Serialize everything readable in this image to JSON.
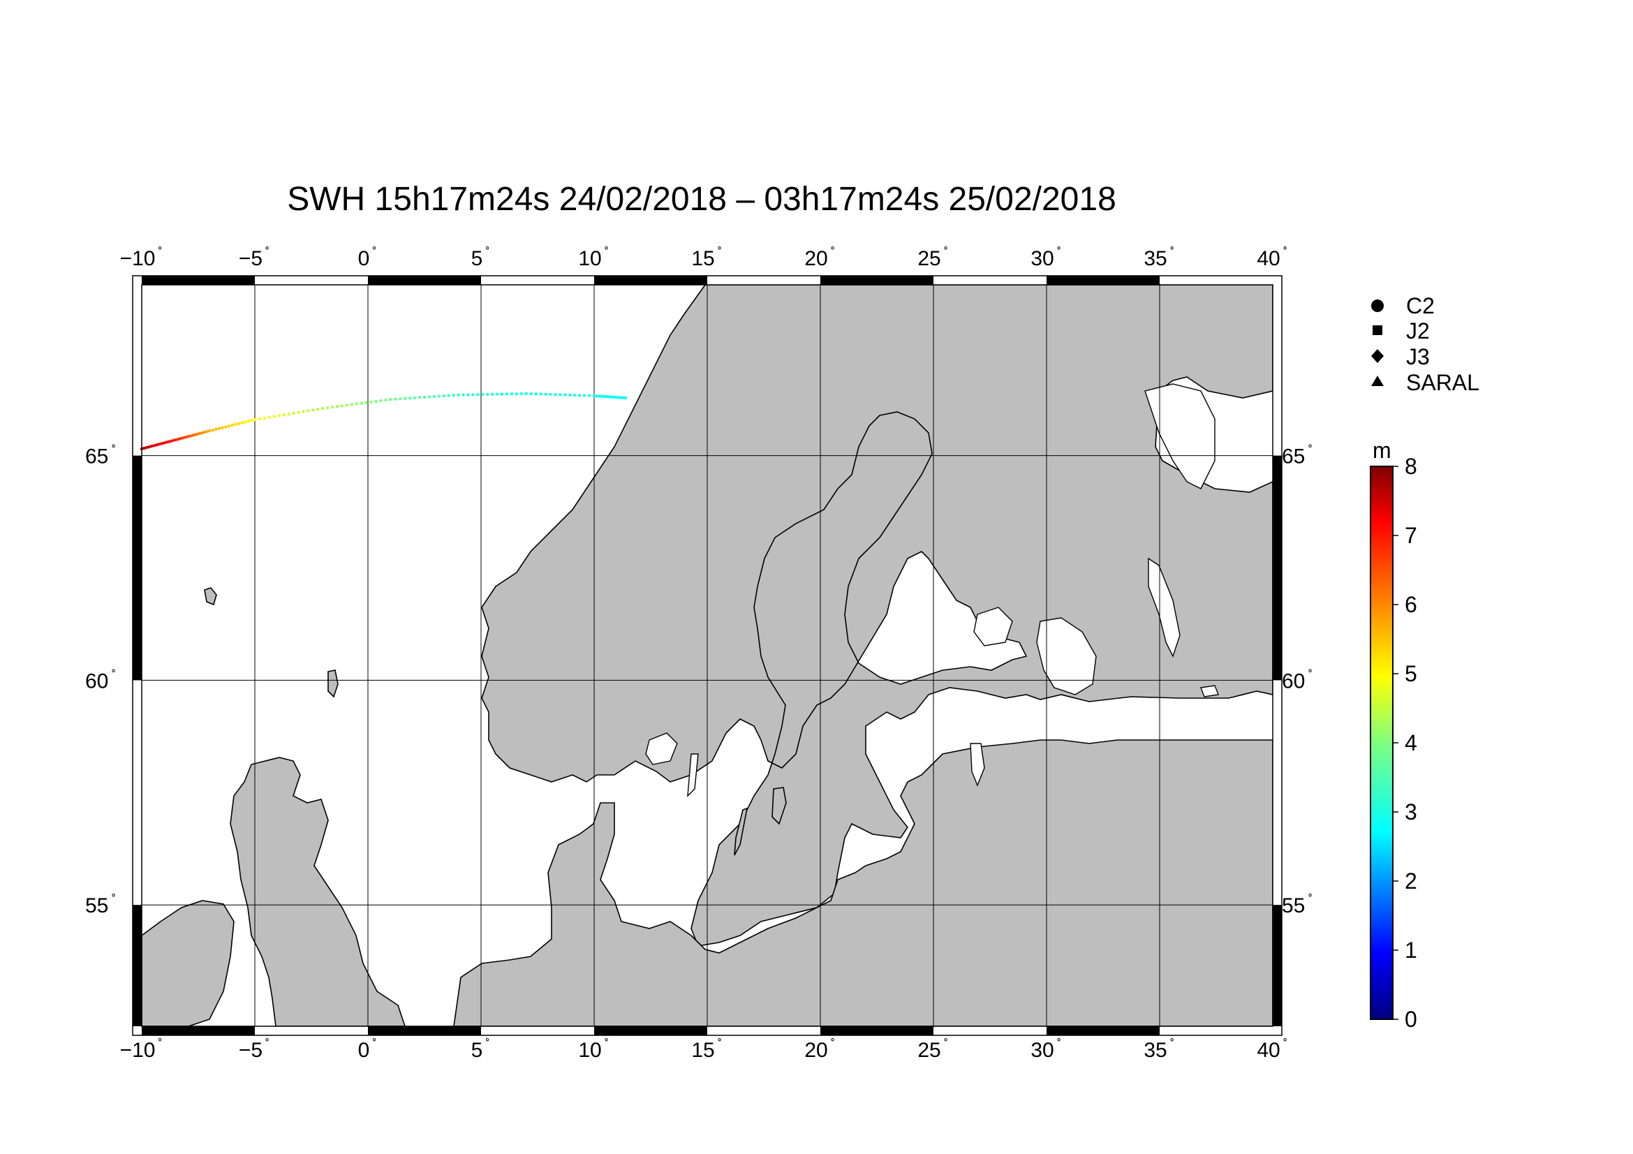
{
  "title": "SWH 15h17m24s 24/02/2018 – 03h17m24s 25/02/2018",
  "map": {
    "lon_labels": [
      "−10",
      "−5",
      "0",
      "5",
      "10",
      "15",
      "20",
      "25",
      "30",
      "35",
      "40"
    ],
    "lat_labels": [
      "55",
      "60",
      "65"
    ],
    "degree_symbol": "˚",
    "land_color": "#bebebe",
    "sea_color": "#ffffff",
    "extent": {
      "lon": [
        -10,
        40
      ],
      "lat": [
        52.3,
        68.8
      ]
    }
  },
  "legend": {
    "items": [
      {
        "label": "C2",
        "symbol": "circle"
      },
      {
        "label": "J2",
        "symbol": "square"
      },
      {
        "label": "J3",
        "symbol": "diamond"
      },
      {
        "label": "SARAL",
        "symbol": "triangle"
      }
    ]
  },
  "colorbar": {
    "unit": "m",
    "ticks": [
      "0",
      "1",
      "2",
      "3",
      "4",
      "5",
      "6",
      "7",
      "8"
    ],
    "range": [
      0,
      8
    ]
  },
  "track": {
    "description_points": [
      {
        "lon": -10.0,
        "lat": 65.15,
        "swh": 7.6
      },
      {
        "lon": -8.5,
        "lat": 65.35,
        "swh": 6.8
      },
      {
        "lon": -7.0,
        "lat": 65.55,
        "swh": 5.6
      },
      {
        "lon": -5.0,
        "lat": 65.8,
        "swh": 5.0
      },
      {
        "lon": -2.0,
        "lat": 66.05,
        "swh": 4.4
      },
      {
        "lon": 1.0,
        "lat": 66.25,
        "swh": 3.9
      },
      {
        "lon": 4.0,
        "lat": 66.35,
        "swh": 3.4
      },
      {
        "lon": 7.0,
        "lat": 66.38,
        "swh": 3.1
      },
      {
        "lon": 10.0,
        "lat": 66.33,
        "swh": 3.2
      },
      {
        "lon": 11.5,
        "lat": 66.28,
        "swh": 3.0
      }
    ]
  }
}
